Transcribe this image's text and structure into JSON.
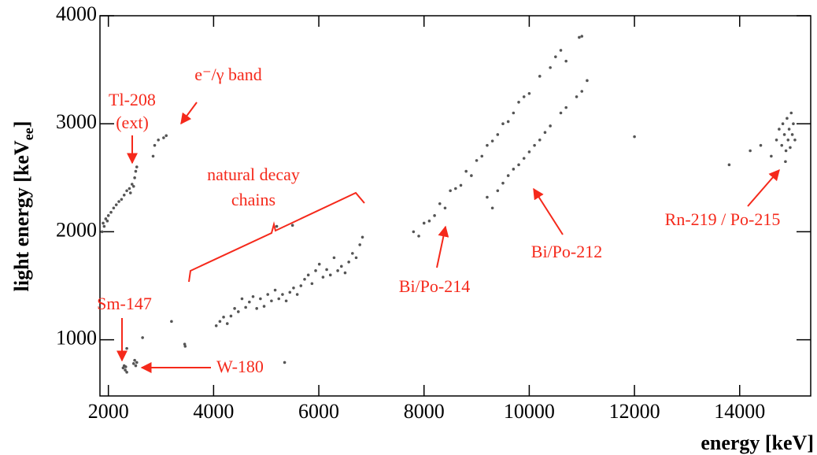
{
  "chart_data": {
    "type": "scatter",
    "x_label": "energy [keV]",
    "y_label": [
      "light energy [keV",
      "ee",
      "]"
    ],
    "annotations": [
      "Tl-208",
      "(ext)",
      "e⁻/γ band",
      "natural decay",
      "chains",
      "Bi/Po-214",
      "Bi/Po-212",
      "Rn-219 / Po-215",
      "Sm-147",
      "W-180"
    ],
    "color": "#555555",
    "annotation_color": "#f5291b",
    "xlim": [
      1840,
      15350
    ],
    "ylim": [
      480,
      4000
    ],
    "xticks": [
      2000,
      4000,
      6000,
      8000,
      10000,
      12000,
      14000
    ],
    "yticks": [
      1000,
      2000,
      3000,
      4000
    ],
    "x": [
      1880,
      1900,
      1920,
      1950,
      1980,
      2000,
      2050,
      2100,
      2150,
      2200,
      2250,
      2300,
      2350,
      2400,
      2420,
      2450,
      2480,
      2500,
      2520,
      2540,
      2850,
      2880,
      2950,
      3050,
      3100,
      2280,
      2300,
      2320,
      2350,
      2330,
      2480,
      2500,
      2520,
      2540,
      2650,
      2350,
      3450,
      3460,
      3200,
      5350,
      5200,
      5500,
      4050,
      4120,
      4190,
      4260,
      4330,
      4400,
      4470,
      4540,
      4610,
      4680,
      4750,
      4820,
      4890,
      4960,
      5030,
      5100,
      5170,
      5240,
      5310,
      5380,
      5450,
      5520,
      5590,
      5660,
      5730,
      5800,
      5870,
      5940,
      6010,
      6080,
      6150,
      6220,
      6290,
      6360,
      6430,
      6500,
      6570,
      6640,
      6710,
      6780,
      6830,
      7800,
      7900,
      8000,
      8100,
      8200,
      8300,
      8400,
      8500,
      8600,
      8700,
      8800,
      8900,
      9000,
      9100,
      9200,
      9300,
      9400,
      9500,
      9600,
      9700,
      9800,
      9900,
      10000,
      10200,
      10400,
      10500,
      10600,
      10700,
      10950,
      11000,
      9200,
      9300,
      9400,
      9500,
      9600,
      9700,
      9800,
      9900,
      10000,
      10100,
      10200,
      10300,
      10400,
      10600,
      10700,
      10900,
      11000,
      11100,
      12000,
      13800,
      14200,
      14400,
      14600,
      14700,
      14750,
      14800,
      14820,
      14850,
      14880,
      14900,
      14920,
      14940,
      14960,
      14980,
      15000,
      15020,
      15050,
      14870
    ],
    "values": [
      2000,
      2080,
      2050,
      2120,
      2100,
      2150,
      2180,
      2220,
      2250,
      2280,
      2300,
      2340,
      2380,
      2400,
      2360,
      2440,
      2420,
      2500,
      2560,
      2600,
      2700,
      2800,
      2850,
      2870,
      2890,
      740,
      760,
      720,
      700,
      750,
      780,
      810,
      760,
      790,
      1020,
      920,
      960,
      940,
      1170,
      790,
      2050,
      2060,
      1130,
      1170,
      1210,
      1150,
      1220,
      1290,
      1260,
      1380,
      1300,
      1350,
      1400,
      1290,
      1380,
      1310,
      1420,
      1360,
      1460,
      1380,
      1420,
      1360,
      1440,
      1480,
      1420,
      1500,
      1560,
      1600,
      1520,
      1640,
      1700,
      1580,
      1650,
      1600,
      1760,
      1640,
      1680,
      1620,
      1720,
      1800,
      1760,
      1880,
      1950,
      2000,
      1960,
      2080,
      2100,
      2150,
      2260,
      2220,
      2380,
      2400,
      2430,
      2560,
      2520,
      2660,
      2700,
      2800,
      2840,
      2900,
      3000,
      3020,
      3100,
      3200,
      3250,
      3280,
      3440,
      3520,
      3620,
      3680,
      3580,
      3800,
      3810,
      2320,
      2220,
      2380,
      2450,
      2520,
      2580,
      2620,
      2680,
      2740,
      2800,
      2850,
      2920,
      2980,
      3100,
      3150,
      3250,
      3300,
      3400,
      2880,
      2620,
      2750,
      2800,
      2700,
      2850,
      2950,
      2800,
      3000,
      2900,
      2750,
      3050,
      2850,
      2950,
      2780,
      3100,
      2900,
      3000,
      2850,
      2650
    ]
  }
}
